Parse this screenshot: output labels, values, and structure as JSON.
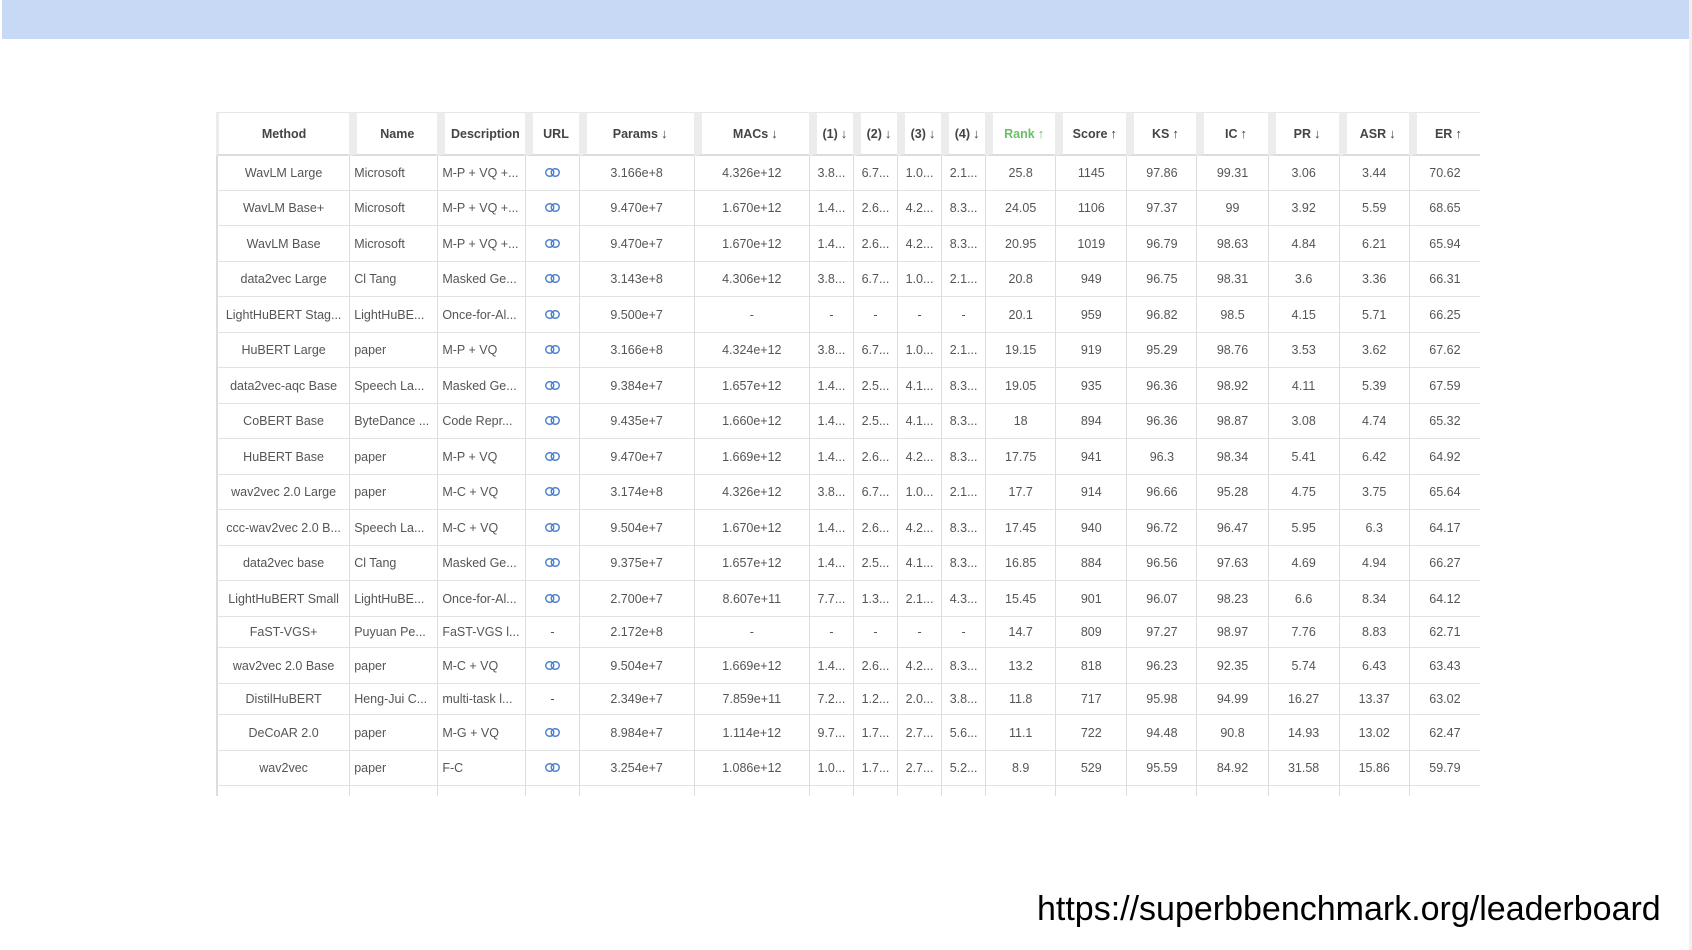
{
  "table": {
    "headers": [
      {
        "label": "Method",
        "arrow": ""
      },
      {
        "label": "Name",
        "arrow": ""
      },
      {
        "label": "Description",
        "arrow": ""
      },
      {
        "label": "URL",
        "arrow": ""
      },
      {
        "label": "Params",
        "arrow": "↓"
      },
      {
        "label": "MACs",
        "arrow": "↓"
      },
      {
        "label": "(1)",
        "arrow": "↓"
      },
      {
        "label": "(2)",
        "arrow": "↓"
      },
      {
        "label": "(3)",
        "arrow": "↓"
      },
      {
        "label": "(4)",
        "arrow": "↓"
      },
      {
        "label": "Rank",
        "arrow": "↑"
      },
      {
        "label": "Score",
        "arrow": "↑"
      },
      {
        "label": "KS",
        "arrow": "↑"
      },
      {
        "label": "IC",
        "arrow": "↑"
      },
      {
        "label": "PR",
        "arrow": "↓"
      },
      {
        "label": "ASR",
        "arrow": "↓"
      },
      {
        "label": "ER",
        "arrow": "↑"
      }
    ],
    "rows": [
      {
        "cells": [
          "WavLM Large",
          "Microsoft",
          "M-P + VQ +...",
          "link",
          "3.166e+8",
          "4.326e+12",
          "3.8...",
          "6.7...",
          "1.0...",
          "2.1...",
          "25.8",
          "1145",
          "97.86",
          "99.31",
          "3.06",
          "3.44",
          "70.62"
        ]
      },
      {
        "cells": [
          "WavLM Base+",
          "Microsoft",
          "M-P + VQ +...",
          "link",
          "9.470e+7",
          "1.670e+12",
          "1.4...",
          "2.6...",
          "4.2...",
          "8.3...",
          "24.05",
          "1106",
          "97.37",
          "99",
          "3.92",
          "5.59",
          "68.65"
        ]
      },
      {
        "cells": [
          "WavLM Base",
          "Microsoft",
          "M-P + VQ +...",
          "link",
          "9.470e+7",
          "1.670e+12",
          "1.4...",
          "2.6...",
          "4.2...",
          "8.3...",
          "20.95",
          "1019",
          "96.79",
          "98.63",
          "4.84",
          "6.21",
          "65.94"
        ]
      },
      {
        "cells": [
          "data2vec Large",
          "Cl Tang",
          "Masked Ge...",
          "link",
          "3.143e+8",
          "4.306e+12",
          "3.8...",
          "6.7...",
          "1.0...",
          "2.1...",
          "20.8",
          "949",
          "96.75",
          "98.31",
          "3.6",
          "3.36",
          "66.31"
        ]
      },
      {
        "cells": [
          "LightHuBERT Stag...",
          "LightHuBE...",
          "Once-for-Al...",
          "link",
          "9.500e+7",
          "-",
          "-",
          "-",
          "-",
          "-",
          "20.1",
          "959",
          "96.82",
          "98.5",
          "4.15",
          "5.71",
          "66.25"
        ]
      },
      {
        "cells": [
          "HuBERT Large",
          "paper",
          "M-P + VQ",
          "link",
          "3.166e+8",
          "4.324e+12",
          "3.8...",
          "6.7...",
          "1.0...",
          "2.1...",
          "19.15",
          "919",
          "95.29",
          "98.76",
          "3.53",
          "3.62",
          "67.62"
        ]
      },
      {
        "cells": [
          "data2vec-aqc Base",
          "Speech La...",
          "Masked Ge...",
          "link",
          "9.384e+7",
          "1.657e+12",
          "1.4...",
          "2.5...",
          "4.1...",
          "8.3...",
          "19.05",
          "935",
          "96.36",
          "98.92",
          "4.11",
          "5.39",
          "67.59"
        ]
      },
      {
        "cells": [
          "CoBERT Base",
          "ByteDance ...",
          "Code Repr...",
          "link",
          "9.435e+7",
          "1.660e+12",
          "1.4...",
          "2.5...",
          "4.1...",
          "8.3...",
          "18",
          "894",
          "96.36",
          "98.87",
          "3.08",
          "4.74",
          "65.32"
        ]
      },
      {
        "cells": [
          "HuBERT Base",
          "paper",
          "M-P + VQ",
          "link",
          "9.470e+7",
          "1.669e+12",
          "1.4...",
          "2.6...",
          "4.2...",
          "8.3...",
          "17.75",
          "941",
          "96.3",
          "98.34",
          "5.41",
          "6.42",
          "64.92"
        ]
      },
      {
        "cells": [
          "wav2vec 2.0 Large",
          "paper",
          "M-C + VQ",
          "link",
          "3.174e+8",
          "4.326e+12",
          "3.8...",
          "6.7...",
          "1.0...",
          "2.1...",
          "17.7",
          "914",
          "96.66",
          "95.28",
          "4.75",
          "3.75",
          "65.64"
        ]
      },
      {
        "cells": [
          "ccc-wav2vec 2.0 B...",
          "Speech La...",
          "M-C + VQ",
          "link",
          "9.504e+7",
          "1.670e+12",
          "1.4...",
          "2.6...",
          "4.2...",
          "8.3...",
          "17.45",
          "940",
          "96.72",
          "96.47",
          "5.95",
          "6.3",
          "64.17"
        ]
      },
      {
        "cells": [
          "data2vec base",
          "Cl Tang",
          "Masked Ge...",
          "link",
          "9.375e+7",
          "1.657e+12",
          "1.4...",
          "2.5...",
          "4.1...",
          "8.3...",
          "16.85",
          "884",
          "96.56",
          "97.63",
          "4.69",
          "4.94",
          "66.27"
        ]
      },
      {
        "cells": [
          "LightHuBERT Small",
          "LightHuBE...",
          "Once-for-Al...",
          "link",
          "2.700e+7",
          "8.607e+11",
          "7.7...",
          "1.3...",
          "2.1...",
          "4.3...",
          "15.45",
          "901",
          "96.07",
          "98.23",
          "6.6",
          "8.34",
          "64.12"
        ]
      },
      {
        "cells": [
          "FaST-VGS+",
          "Puyuan Pe...",
          "FaST-VGS l...",
          "-",
          "2.172e+8",
          "-",
          "-",
          "-",
          "-",
          "-",
          "14.7",
          "809",
          "97.27",
          "98.97",
          "7.76",
          "8.83",
          "62.71"
        ]
      },
      {
        "cells": [
          "wav2vec 2.0 Base",
          "paper",
          "M-C + VQ",
          "link",
          "9.504e+7",
          "1.669e+12",
          "1.4...",
          "2.6...",
          "4.2...",
          "8.3...",
          "13.2",
          "818",
          "96.23",
          "92.35",
          "5.74",
          "6.43",
          "63.43"
        ]
      },
      {
        "cells": [
          "DistilHuBERT",
          "Heng-Jui C...",
          "multi-task l...",
          "-",
          "2.349e+7",
          "7.859e+11",
          "7.2...",
          "1.2...",
          "2.0...",
          "3.8...",
          "11.8",
          "717",
          "95.98",
          "94.99",
          "16.27",
          "13.37",
          "63.02"
        ]
      },
      {
        "cells": [
          "DeCoAR 2.0",
          "paper",
          "M-G + VQ",
          "link",
          "8.984e+7",
          "1.114e+12",
          "9.7...",
          "1.7...",
          "2.7...",
          "5.6...",
          "11.1",
          "722",
          "94.48",
          "90.8",
          "14.93",
          "13.02",
          "62.47"
        ]
      },
      {
        "cells": [
          "wav2vec",
          "paper",
          "F-C",
          "link",
          "3.254e+7",
          "1.086e+12",
          "1.0...",
          "1.7...",
          "2.7...",
          "5.2...",
          "8.9",
          "529",
          "95.59",
          "84.92",
          "31.58",
          "15.86",
          "59.79"
        ]
      }
    ]
  },
  "footer": {
    "url_text": "https://superbbenchmark.org/leaderboard"
  },
  "colors": {
    "band": "#c8d9f5",
    "rank_header": "#6cbf6a",
    "link_icon": "#4a7fd0"
  }
}
